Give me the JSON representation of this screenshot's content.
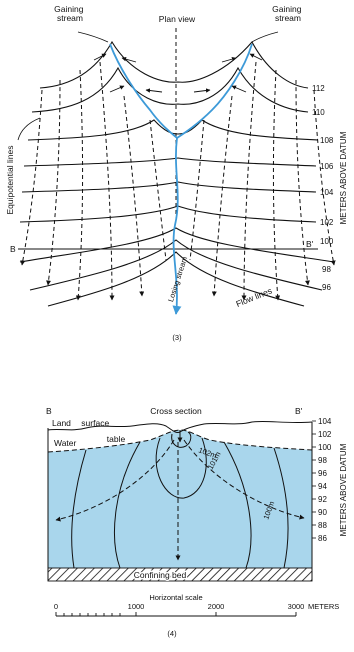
{
  "plan_view": {
    "title": "Plan view",
    "gaining_stream_left": [
      "Gaining",
      "stream"
    ],
    "gaining_stream_right": [
      "Gaining",
      "stream"
    ],
    "equipotential_label": "Equipotential lines",
    "flow_lines_label": "Flow lines",
    "losing_stream_label": "Losing stream",
    "axis_label": "METERS ABOVE DATUM",
    "contour_values": [
      "112",
      "110",
      "108",
      "106",
      "104",
      "102",
      "100",
      "98",
      "96"
    ],
    "section_endpoint_left": "B",
    "section_endpoint_right": "B'",
    "panel_number": "(3)",
    "stream_color": "#3d9ad8"
  },
  "cross_section": {
    "title": "Cross section",
    "endpoint_left": "B",
    "endpoint_right": "B'",
    "land_surface_label": [
      "Land",
      "surface"
    ],
    "water_table_label": [
      "Water",
      "table"
    ],
    "contour_labels": [
      "102m",
      "101m",
      "100m"
    ],
    "confining_bed_label": "Confining bed",
    "axis_ticks": [
      "104",
      "102",
      "100",
      "98",
      "96",
      "94",
      "92",
      "90",
      "88",
      "86"
    ],
    "axis_label": "METERS ABOVE DATUM",
    "water_color": "#a9d6ec",
    "scale": {
      "title": "Horizontal scale",
      "ticks": [
        "0",
        "1000",
        "2000",
        "3000"
      ],
      "unit": "METERS"
    },
    "panel_number": "(4)"
  }
}
